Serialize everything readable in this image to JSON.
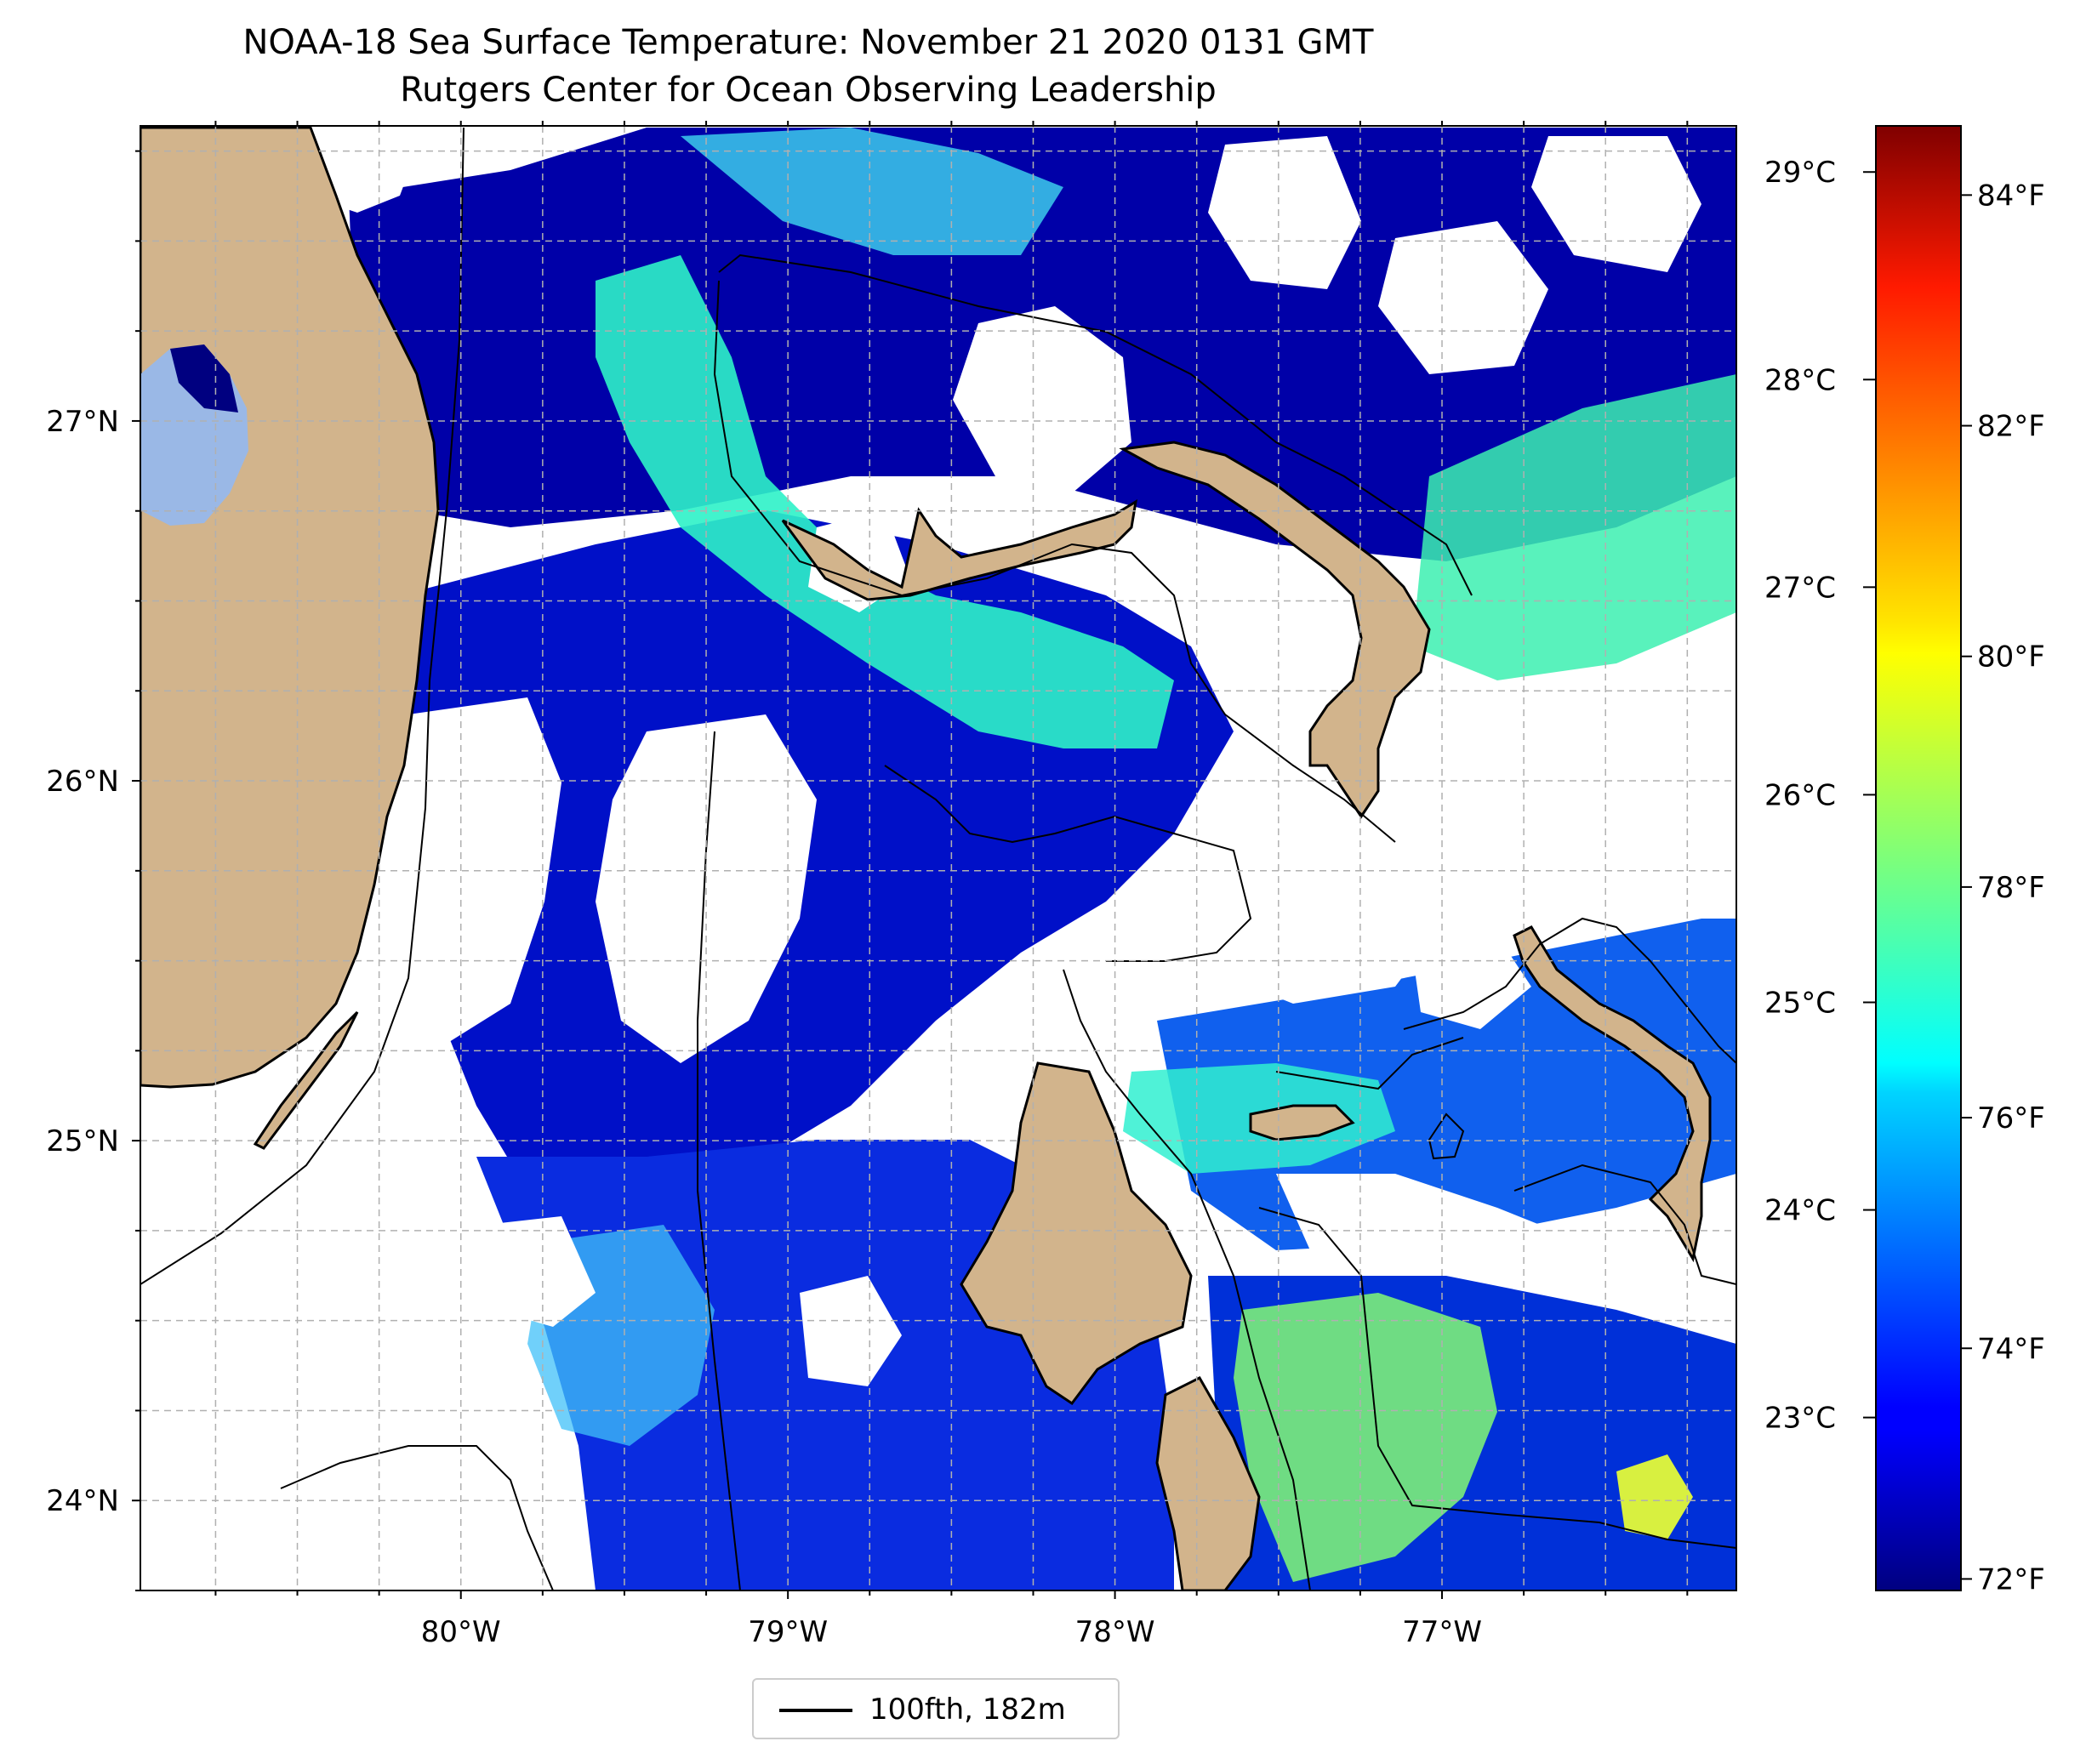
{
  "title": "NOAA-18 Sea Surface Temperature: November 21 2020 0131 GMT",
  "subtitle": "Rutgers Center for Ocean Observing Leadership",
  "map": {
    "lon_range": [
      -80.98,
      -76.1
    ],
    "lat_range": [
      23.75,
      27.82
    ],
    "lon_ticks": [
      {
        "value": -80,
        "label": "80°W"
      },
      {
        "value": -79,
        "label": "79°W"
      },
      {
        "value": -78,
        "label": "78°W"
      },
      {
        "value": -77,
        "label": "77°W"
      }
    ],
    "lat_ticks": [
      {
        "value": 24,
        "label": "24°N"
      },
      {
        "value": 25,
        "label": "25°N"
      },
      {
        "value": 26,
        "label": "26°N"
      },
      {
        "value": 27,
        "label": "27°N"
      }
    ],
    "gridlines": "dashed",
    "colors": {
      "land": "#d2b48c",
      "lake": "#9ab8e6",
      "no_data": "#ffffff",
      "coastline": "#000000",
      "isobath": "#000000"
    }
  },
  "colorbar": {
    "colormap": "jet",
    "fahrenheit_range": [
      71.9,
      84.6
    ],
    "celsius_ticks": [
      {
        "value": 23,
        "label": "23°C"
      },
      {
        "value": 24,
        "label": "24°C"
      },
      {
        "value": 25,
        "label": "25°C"
      },
      {
        "value": 26,
        "label": "26°C"
      },
      {
        "value": 27,
        "label": "27°C"
      },
      {
        "value": 28,
        "label": "28°C"
      },
      {
        "value": 29,
        "label": "29°C"
      }
    ],
    "fahrenheit_ticks": [
      {
        "value": 72,
        "label": "72°F"
      },
      {
        "value": 74,
        "label": "74°F"
      },
      {
        "value": 76,
        "label": "76°F"
      },
      {
        "value": 78,
        "label": "78°F"
      },
      {
        "value": 80,
        "label": "80°F"
      },
      {
        "value": 82,
        "label": "82°F"
      },
      {
        "value": 84,
        "label": "84°F"
      }
    ]
  },
  "legend": {
    "label": "100fth, 182m",
    "line_color": "#000000"
  }
}
